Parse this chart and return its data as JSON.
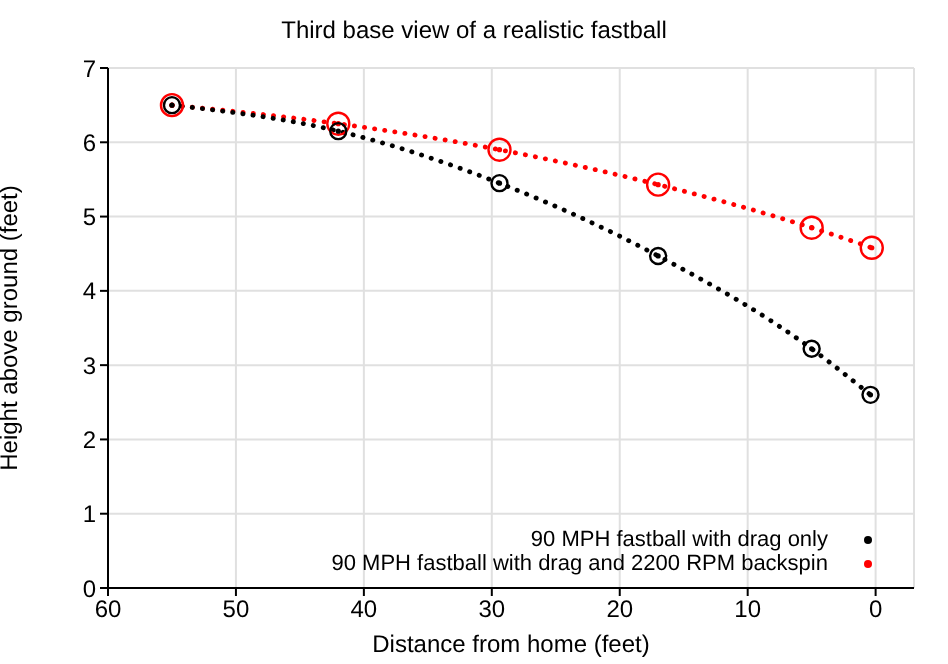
{
  "chart_data": {
    "type": "line",
    "title": "Third base view of a realistic fastball",
    "xlabel": "Distance from home (feet)",
    "ylabel": "Height above ground (feet)",
    "xlim": [
      60,
      -3
    ],
    "xticks": [
      60,
      50,
      40,
      30,
      20,
      10,
      0
    ],
    "ylim": [
      0,
      7
    ],
    "yticks": [
      0,
      1,
      2,
      3,
      4,
      5,
      6,
      7
    ],
    "grid": true,
    "legend": "bottom right",
    "marker": "circle",
    "line_style": "dotted",
    "series": [
      {
        "name": "90 MPH fastball with drag only",
        "color": "#000000",
        "x": [
          55,
          42,
          29.4,
          17,
          5,
          0.4
        ],
        "values": [
          6.5,
          6.15,
          5.45,
          4.47,
          3.22,
          2.6
        ]
      },
      {
        "name": "90 MPH fastball with drag and 2200 RPM backspin",
        "color": "#ff0000",
        "x": [
          55,
          42,
          29.4,
          17,
          5,
          0.3
        ],
        "values": [
          6.5,
          6.25,
          5.9,
          5.43,
          4.85,
          4.58
        ]
      }
    ]
  }
}
